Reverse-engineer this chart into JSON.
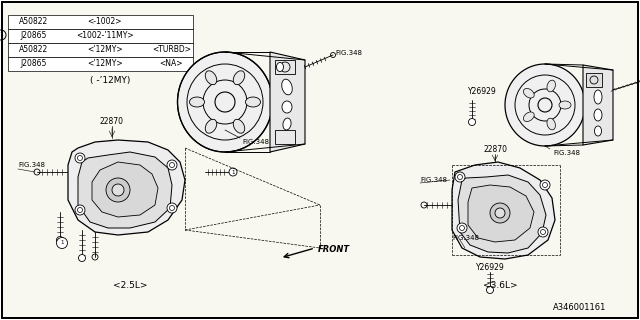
{
  "bg_color": "#ffffff",
  "line_color": "#000000",
  "diagram_id": "A346001161",
  "table_rows": [
    [
      "A50822",
      "<-1002>",
      ""
    ],
    [
      "J20865",
      "<1002-’11MY>",
      ""
    ],
    [
      "A50822",
      "<’12MY>",
      "<TURBD>"
    ],
    [
      "J20865",
      "<’12MY>",
      "<NA>"
    ]
  ],
  "era_label": "( -’12MY)",
  "front_label": "FRONT",
  "label_25l": "<2.5L>",
  "label_36l": "<3.6L>",
  "label_22870": "22870",
  "label_y26929": "Y26929",
  "label_fig348": "FIG.348"
}
